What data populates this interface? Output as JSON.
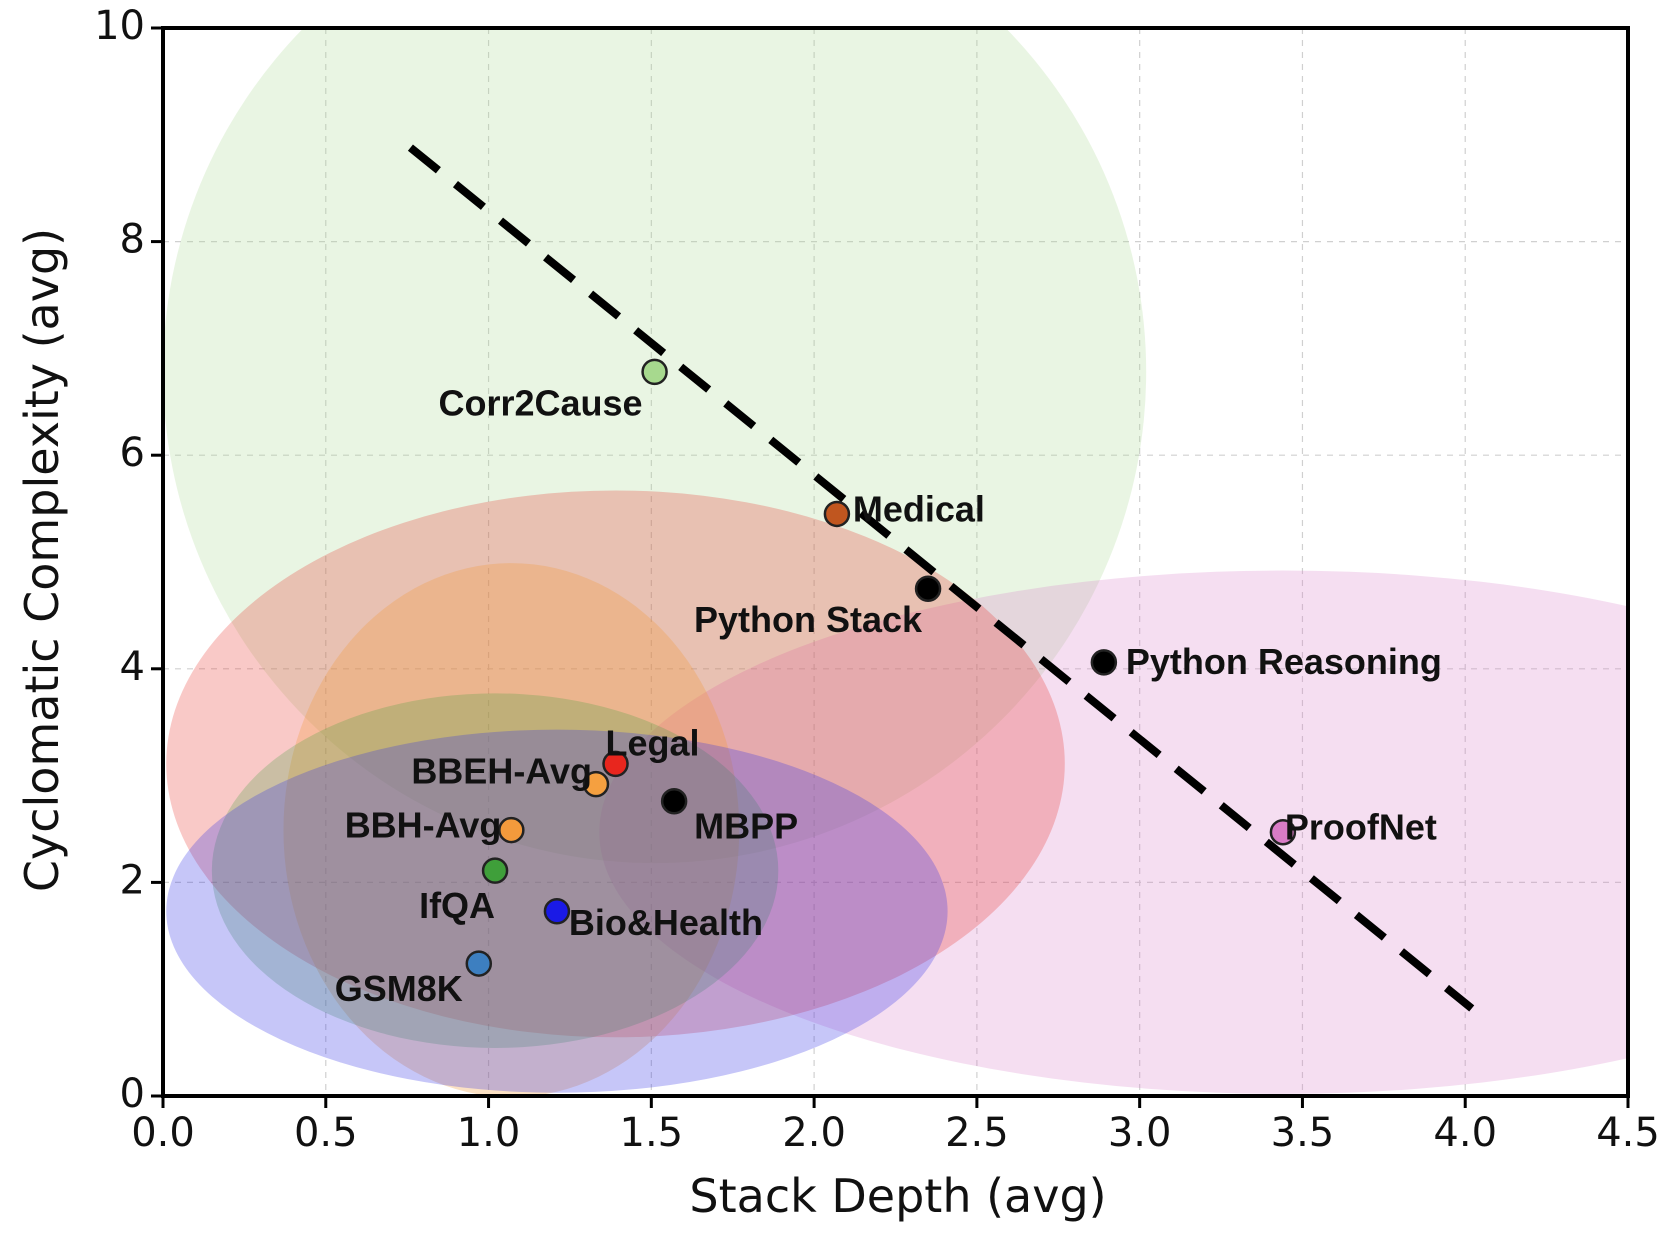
{
  "chart_data": {
    "type": "scatter",
    "title": "",
    "xlabel": "Stack Depth (avg)",
    "ylabel": "Cyclomatic Complexity (avg)",
    "xlim": [
      0.0,
      4.5
    ],
    "ylim": [
      0,
      10
    ],
    "xticks": [
      "0.0",
      "0.5",
      "1.0",
      "1.5",
      "2.0",
      "2.5",
      "3.0",
      "3.5",
      "4.0",
      "4.5"
    ],
    "yticks": [
      "0",
      "2",
      "4",
      "6",
      "8",
      "10"
    ],
    "grid": true,
    "points": [
      {
        "name": "Corr2Cause",
        "x": 1.51,
        "y": 6.78,
        "color": "#a7d98e"
      },
      {
        "name": "Medical",
        "x": 2.07,
        "y": 5.45,
        "color": "#c0561f"
      },
      {
        "name": "Python Stack",
        "x": 2.35,
        "y": 4.75,
        "color": "#000000"
      },
      {
        "name": "Python Reasoning",
        "x": 2.89,
        "y": 4.06,
        "color": "#000000"
      },
      {
        "name": "Legal",
        "x": 1.39,
        "y": 3.11,
        "color": "#e8261e"
      },
      {
        "name": "BBEH-Avg",
        "x": 1.33,
        "y": 2.92,
        "color": "#f5a040"
      },
      {
        "name": "MBPP",
        "x": 1.57,
        "y": 2.76,
        "color": "#000000"
      },
      {
        "name": "ProofNet",
        "x": 3.44,
        "y": 2.47,
        "color": "#d97cc6"
      },
      {
        "name": "BBH-Avg",
        "x": 1.07,
        "y": 2.49,
        "color": "#f39a3c"
      },
      {
        "name": "IfQA",
        "x": 1.02,
        "y": 2.11,
        "color": "#3f9f3a"
      },
      {
        "name": "Bio&Health",
        "x": 1.21,
        "y": 1.73,
        "color": "#1a1ae6"
      },
      {
        "name": "GSM8K",
        "x": 0.97,
        "y": 1.24,
        "color": "#3d7fc0"
      }
    ],
    "regions": [
      {
        "name": "Corr2Cause",
        "cx": 1.51,
        "cy": 6.78,
        "rx": 1.51,
        "ry": 4.6,
        "color": "#a7d98e",
        "alpha": 0.25
      },
      {
        "name": "ProofNet",
        "cx": 3.44,
        "cy": 2.47,
        "rx": 2.1,
        "ry": 2.45,
        "color": "#d97cc6",
        "alpha": 0.25
      },
      {
        "name": "Legal",
        "cx": 1.39,
        "cy": 3.11,
        "rx": 1.38,
        "ry": 2.56,
        "color": "#e8261e",
        "alpha": 0.25
      },
      {
        "name": "BBH-Avg",
        "cx": 1.07,
        "cy": 2.49,
        "rx": 0.7,
        "ry": 2.5,
        "color": "#f39a3c",
        "alpha": 0.3
      },
      {
        "name": "IfQA",
        "cx": 1.02,
        "cy": 2.11,
        "rx": 0.87,
        "ry": 1.66,
        "color": "#3f9f3a",
        "alpha": 0.25
      },
      {
        "name": "Bio&Health",
        "cx": 1.21,
        "cy": 1.73,
        "rx": 1.2,
        "ry": 1.7,
        "color": "#3333e6",
        "alpha": 0.28
      }
    ],
    "trendline": {
      "x": [
        0.76,
        4.02
      ],
      "y": [
        8.88,
        0.82
      ],
      "style": "dashed",
      "color": "#000000"
    }
  }
}
